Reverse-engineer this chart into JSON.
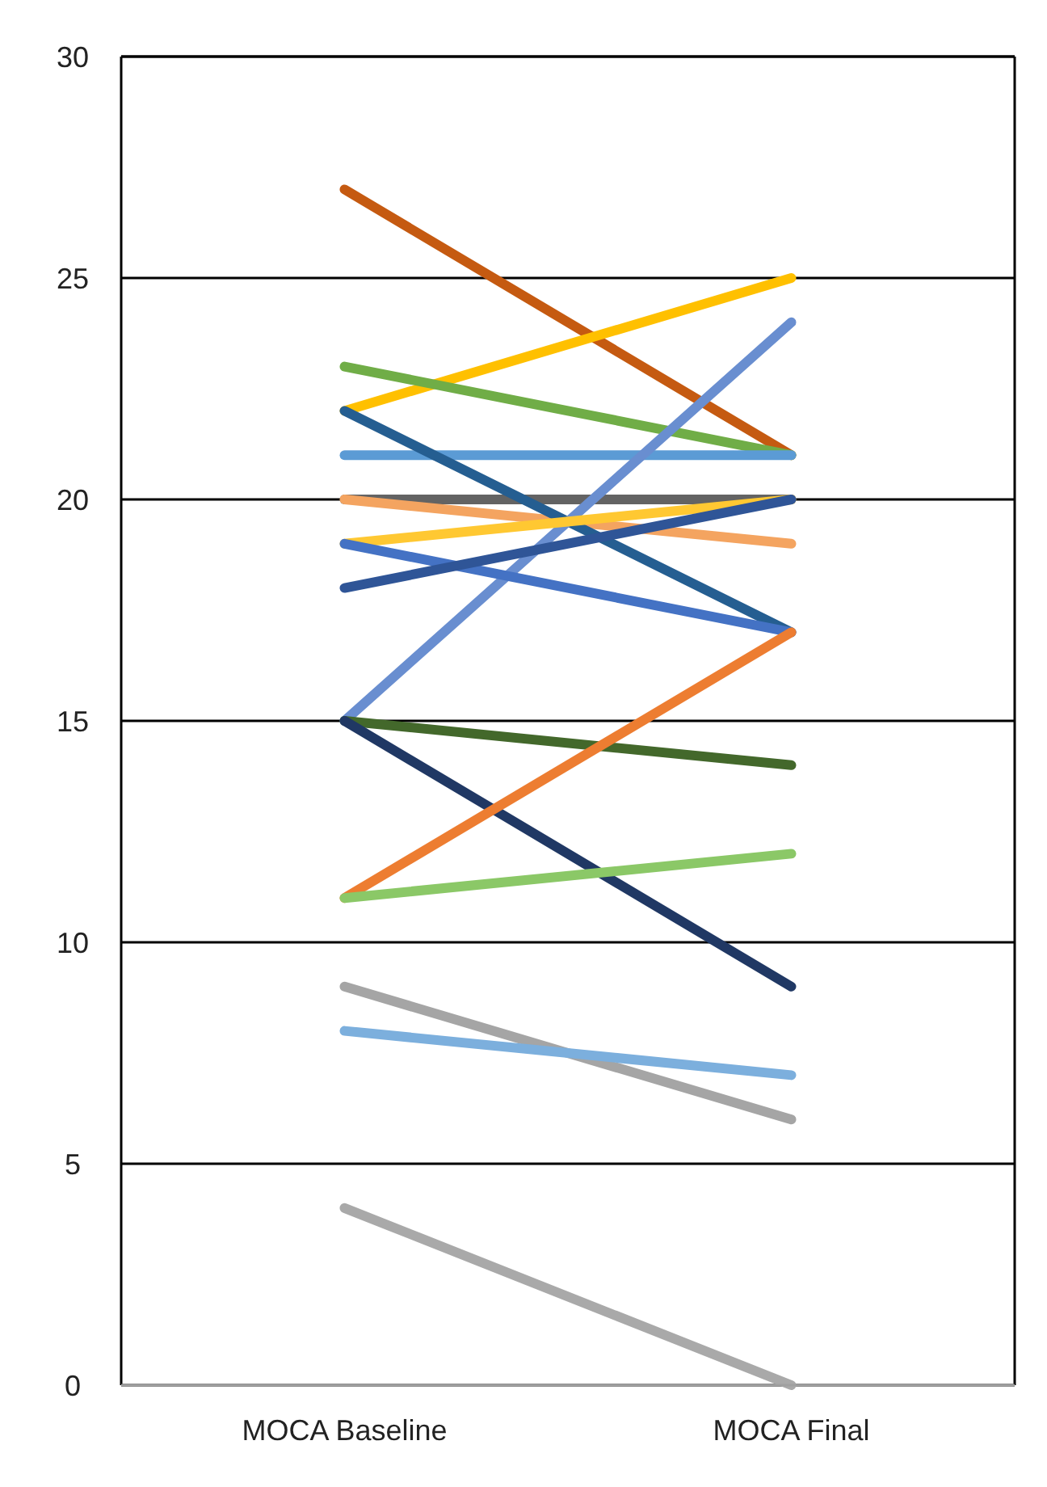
{
  "chart_data": {
    "type": "line",
    "categories": [
      "MOCA Baseline",
      "MOCA Final"
    ],
    "ylim": [
      0,
      30
    ],
    "yticks": [
      0,
      5,
      10,
      15,
      20,
      25,
      30
    ],
    "grid": "y",
    "marker": "none",
    "line_style": "solid",
    "series": [
      {
        "color": "#c55a11",
        "values": [
          27,
          21
        ]
      },
      {
        "color": "#ffc000",
        "values": [
          22,
          25
        ]
      },
      {
        "color": "#70ad47",
        "values": [
          23,
          21
        ]
      },
      {
        "color": "#5b9bd5",
        "values": [
          21,
          21
        ]
      },
      {
        "color": "#636363",
        "values": [
          20,
          20
        ]
      },
      {
        "color": "#f4a460",
        "values": [
          20,
          19
        ]
      },
      {
        "color": "#255e91",
        "values": [
          22,
          17
        ]
      },
      {
        "color": "#698ed0",
        "values": [
          15,
          24
        ]
      },
      {
        "color": "#ffc832",
        "values": [
          19,
          20
        ]
      },
      {
        "color": "#4472c4",
        "values": [
          19,
          17
        ]
      },
      {
        "color": "#2f5597",
        "values": [
          18,
          20
        ]
      },
      {
        "color": "#43682b",
        "values": [
          15,
          14
        ]
      },
      {
        "color": "#203864",
        "values": [
          15,
          9
        ]
      },
      {
        "color": "#ed7d31",
        "values": [
          11,
          17
        ]
      },
      {
        "color": "#8bc867",
        "values": [
          11,
          12
        ]
      },
      {
        "color": "#a5a5a5",
        "values": [
          9,
          6
        ]
      },
      {
        "color": "#7cafdd",
        "values": [
          8,
          7
        ]
      },
      {
        "color": "#a9a9a9",
        "values": [
          4,
          0
        ]
      }
    ]
  }
}
